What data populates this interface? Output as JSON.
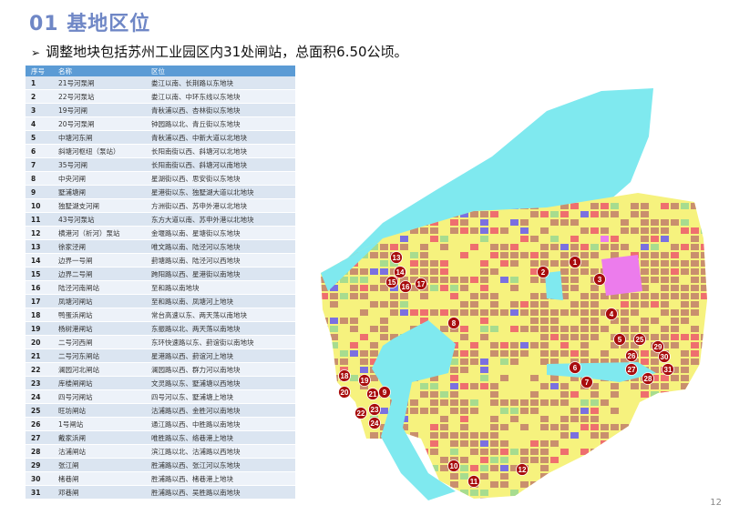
{
  "title": "01 基地区位",
  "subtitle": "调整地块包括苏州工业园区内31处闸站，总面积6.50公顷。",
  "table": {
    "headers": [
      "序号",
      "名称",
      "区位"
    ],
    "rows": [
      [
        "1",
        "21号河泵闸",
        "娄江以南、长荆路以东地块"
      ],
      [
        "2",
        "22号河泵站",
        "娄江以南、中环东线以东地块"
      ],
      [
        "3",
        "19号河闸",
        "青秋浦以西、杏林街以东地块"
      ],
      [
        "4",
        "20号河泵闸",
        "钟园路以北、青丘街以东地块"
      ],
      [
        "5",
        "中塘河东闸",
        "青秋浦以西、中新大道以北地块"
      ],
      [
        "6",
        "斜塘河枢纽（泵站）",
        "长阳南街以西、斜塘河以北地块"
      ],
      [
        "7",
        "35号河闸",
        "长阳南街以西、斜塘河以南地块"
      ],
      [
        "8",
        "中央河闸",
        "星湖街以西、思安街以东地块"
      ],
      [
        "9",
        "墅浦塘闸",
        "星港街以东、独墅湖大道以北地块"
      ],
      [
        "10",
        "独墅湖支河闸",
        "方洲街以西、苏申外港以北地块"
      ],
      [
        "11",
        "43号河泵站",
        "东方大道以南、苏申外港以北地块"
      ],
      [
        "12",
        "横港河（析河）泵站",
        "金堰路以南、星塘街以东地块"
      ],
      [
        "13",
        "徐家泾闸",
        "唯文路以南、陆泾河以东地块"
      ],
      [
        "14",
        "边界一号闸",
        "葑塘路以南、陆泾河以西地块"
      ],
      [
        "15",
        "边界二号闸",
        "跨阳路以西、星港街以南地块"
      ],
      [
        "16",
        "陆泾河南闸站",
        "至和路以南地块"
      ],
      [
        "17",
        "凤塘河闸站",
        "至和路以南、凤塘河上地块"
      ],
      [
        "18",
        "鸭蛋浜闸站",
        "常台高速以东、两天荡以南地块"
      ],
      [
        "19",
        "杨树港闸站",
        "东振路以北、两天荡以南地块"
      ],
      [
        "20",
        "二号河西闸",
        "东环快速路以东、葑谊街以南地块"
      ],
      [
        "21",
        "二号河东闸站",
        "星港路以西、葑谊河上地块"
      ],
      [
        "22",
        "澜园河北闸站",
        "澜园路以西、群力河以南地块"
      ],
      [
        "23",
        "库楼闸闸站",
        "文灵路以东、墅浦塘以西地块"
      ],
      [
        "24",
        "四号河闸站",
        "四号河以东、墅浦塘上地块"
      ],
      [
        "25",
        "旺坊闸站",
        "沽浦路以西、金胜河以南地块"
      ],
      [
        "26",
        "1号闸站",
        "通江路以西、中胜路以南地块"
      ],
      [
        "27",
        "戴家浜闸",
        "唯胜路以东、络巷港上地块"
      ],
      [
        "28",
        "沽浦闸站",
        "滨江路以北、沽浦路以西地块"
      ],
      [
        "29",
        "张江闸",
        "胜浦路以西、张江河以东地块"
      ],
      [
        "30",
        "楮巷闸",
        "胜浦路以西、楮巷港上地块"
      ],
      [
        "31",
        "邓巷闸",
        "胜浦路以西、吴胜路以南地块"
      ]
    ]
  },
  "map": {
    "markers": [
      "1",
      "2",
      "3",
      "4",
      "5",
      "6",
      "7",
      "8",
      "9",
      "10",
      "11",
      "12",
      "13",
      "14",
      "15",
      "16",
      "17",
      "18",
      "19",
      "20",
      "21",
      "22",
      "23",
      "24",
      "25",
      "26",
      "27",
      "28",
      "29",
      "30",
      "31"
    ],
    "colors": {
      "water": "#7fe9ef",
      "land": "#f6f27e",
      "residential": "#c98f6e",
      "commercial": "#ee6f6f",
      "industrial": "#ec7cec",
      "public": "#7b70e0",
      "green": "#a7dc8f",
      "marker": "#a80d0d"
    }
  },
  "page_number": "12"
}
